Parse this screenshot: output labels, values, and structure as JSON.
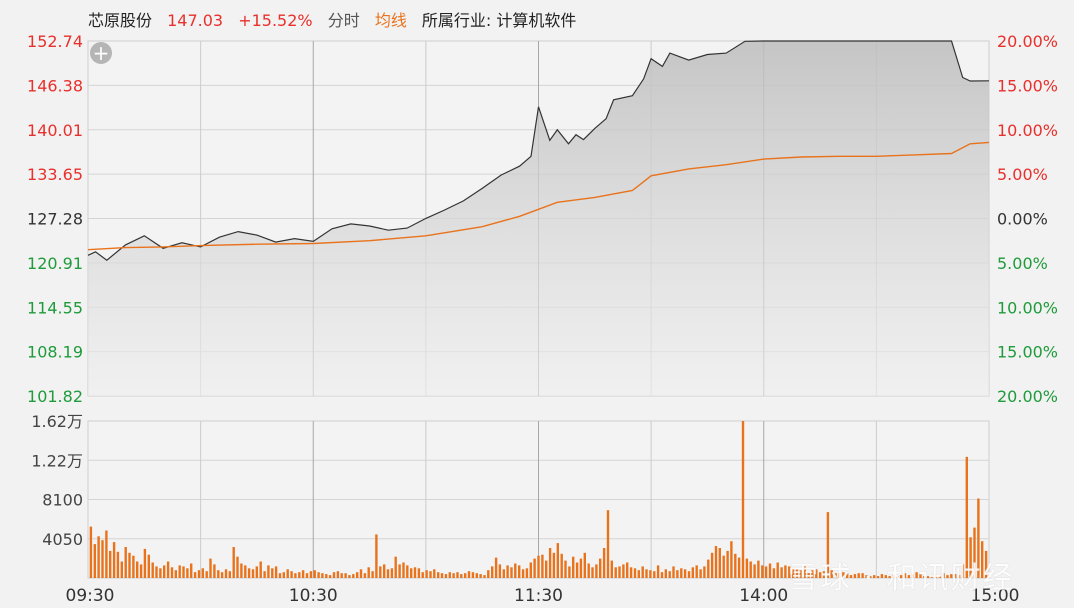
{
  "header": {
    "stock_name": "芯原股份",
    "price": "147.03",
    "change_pct": "+15.52%",
    "mode_label": "分时",
    "avg_label": "均线",
    "industry": "所属行业: 计算机软件"
  },
  "watermark": "雪球 · 和讯财经",
  "colors": {
    "up": "#e8302c",
    "down": "#1f9b3b",
    "price_line": "#333333",
    "avg_line": "#e8731c",
    "volume": "#e8731c"
  },
  "chart_data": [
    {
      "type": "area",
      "title": "",
      "xlabel": "",
      "ylabel": "",
      "ylim": [
        101.82,
        152.74
      ],
      "grid": true,
      "y_ticks_left": [
        "152.74",
        "146.38",
        "140.01",
        "133.65",
        "127.28",
        "120.91",
        "114.55",
        "108.19",
        "101.82"
      ],
      "y_ticks_right": [
        "20.00%",
        "15.00%",
        "10.00%",
        "5.00%",
        "0.00%",
        "5.00%",
        "10.00%",
        "15.00%",
        "20.00%"
      ],
      "x_ticks": [
        "09:30",
        "10:30",
        "11:30",
        "14:00",
        "15:00"
      ],
      "series": [
        {
          "role": "price",
          "x": [
            "09:30",
            "09:32",
            "09:35",
            "09:40",
            "09:45",
            "09:50",
            "09:55",
            "10:00",
            "10:05",
            "10:10",
            "10:15",
            "10:20",
            "10:25",
            "10:30",
            "10:35",
            "10:40",
            "10:45",
            "10:50",
            "10:55",
            "11:00",
            "11:05",
            "11:10",
            "11:15",
            "11:20",
            "11:25",
            "11:28",
            "11:30",
            "13:03",
            "13:05",
            "13:08",
            "13:10",
            "13:12",
            "13:15",
            "13:18",
            "13:20",
            "13:25",
            "13:28",
            "13:30",
            "13:33",
            "13:35",
            "13:40",
            "13:45",
            "13:50",
            "13:55",
            "14:00",
            "14:05",
            "14:10",
            "14:15",
            "14:20",
            "14:25",
            "14:30",
            "14:35",
            "14:40",
            "14:45",
            "14:50",
            "14:53",
            "14:55",
            "15:00"
          ],
          "values": [
            122.0,
            122.5,
            121.3,
            123.5,
            124.8,
            123.0,
            123.8,
            123.2,
            124.6,
            125.4,
            124.9,
            123.9,
            124.4,
            124.0,
            125.8,
            126.5,
            126.2,
            125.6,
            125.9,
            127.3,
            128.5,
            129.8,
            131.6,
            133.5,
            134.8,
            136.2,
            143.3,
            138.5,
            140.0,
            138.0,
            139.3,
            138.6,
            140.2,
            141.6,
            144.3,
            144.9,
            147.3,
            150.2,
            149.1,
            151.0,
            150.0,
            150.8,
            151.0,
            152.7,
            152.74,
            152.74,
            152.74,
            152.74,
            152.74,
            152.74,
            152.74,
            152.74,
            152.74,
            152.74,
            152.74,
            147.5,
            147.0,
            147.03
          ]
        },
        {
          "role": "average",
          "x": [
            "09:30",
            "09:40",
            "09:50",
            "10:00",
            "10:15",
            "10:30",
            "10:45",
            "11:00",
            "11:15",
            "11:25",
            "11:30",
            "13:05",
            "13:15",
            "13:25",
            "13:30",
            "13:40",
            "13:50",
            "14:00",
            "14:10",
            "14:20",
            "14:30",
            "14:40",
            "14:50",
            "14:55",
            "15:00"
          ],
          "values": [
            122.8,
            123.1,
            123.2,
            123.4,
            123.6,
            123.7,
            124.1,
            124.8,
            126.1,
            127.6,
            128.6,
            129.6,
            130.3,
            131.3,
            133.4,
            134.4,
            135.0,
            135.8,
            136.1,
            136.2,
            136.2,
            136.4,
            136.6,
            138.0,
            138.2
          ]
        }
      ]
    },
    {
      "type": "bar",
      "title": "",
      "ylim": [
        0,
        16200
      ],
      "y_ticks": [
        "1.62万",
        "1.22万",
        "8100",
        "4050"
      ],
      "x_ticks": [
        "09:30",
        "10:30",
        "11:30",
        "14:00",
        "15:00"
      ],
      "total_minutes": 240,
      "values": [
        5300,
        3500,
        4300,
        3900,
        4900,
        2800,
        3700,
        2700,
        1700,
        3200,
        2600,
        2300,
        1700,
        1400,
        3000,
        2400,
        1600,
        1200,
        1000,
        1300,
        1700,
        1100,
        800,
        1300,
        1200,
        1000,
        1500,
        600,
        800,
        1000,
        700,
        2000,
        1400,
        800,
        600,
        900,
        700,
        3200,
        2200,
        1500,
        1300,
        1000,
        900,
        1200,
        1700,
        700,
        1300,
        1000,
        1200,
        500,
        600,
        900,
        700,
        500,
        600,
        800,
        500,
        700,
        800,
        600,
        500,
        400,
        300,
        600,
        700,
        500,
        500,
        300,
        400,
        600,
        900,
        500,
        1100,
        700,
        4500,
        1200,
        1400,
        900,
        1000,
        2200,
        1400,
        1600,
        1300,
        1000,
        1100,
        1000,
        600,
        800,
        700,
        900,
        600,
        500,
        400,
        600,
        500,
        600,
        400,
        500,
        700,
        600,
        500,
        400,
        300,
        800,
        1200,
        2100,
        1400,
        900,
        1300,
        1100,
        1500,
        1300,
        900,
        1000,
        1600,
        2000,
        2300,
        2400,
        1800,
        3100,
        2600,
        3600,
        2500,
        1800,
        1200,
        2200,
        1600,
        2000,
        2600,
        1500,
        1100,
        1400,
        2000,
        3100,
        7000,
        1800,
        1100,
        1200,
        1400,
        1600,
        1100,
        1000,
        800,
        1200,
        900,
        800,
        700,
        1300,
        600,
        900,
        700,
        1200,
        800,
        1000,
        900,
        700,
        1100,
        1300,
        900,
        1200,
        1900,
        2600,
        3300,
        3100,
        2300,
        2800,
        3800,
        2500,
        2100,
        16200,
        2000,
        1700,
        1400,
        1800,
        1300,
        1200,
        1500,
        1000,
        1600,
        1100,
        1300,
        1200,
        1000,
        900,
        800,
        1200,
        600,
        800,
        900,
        600,
        700,
        6800,
        800,
        500,
        500,
        600,
        500,
        300,
        400,
        500,
        500,
        300,
        200,
        300,
        200,
        400,
        300,
        200,
        300,
        200,
        300,
        500,
        300,
        400,
        600,
        400,
        200,
        200,
        300,
        300,
        200,
        500,
        300,
        400,
        400,
        300,
        1400,
        12500,
        4200,
        5200,
        8200,
        3800,
        2800
      ]
    }
  ]
}
